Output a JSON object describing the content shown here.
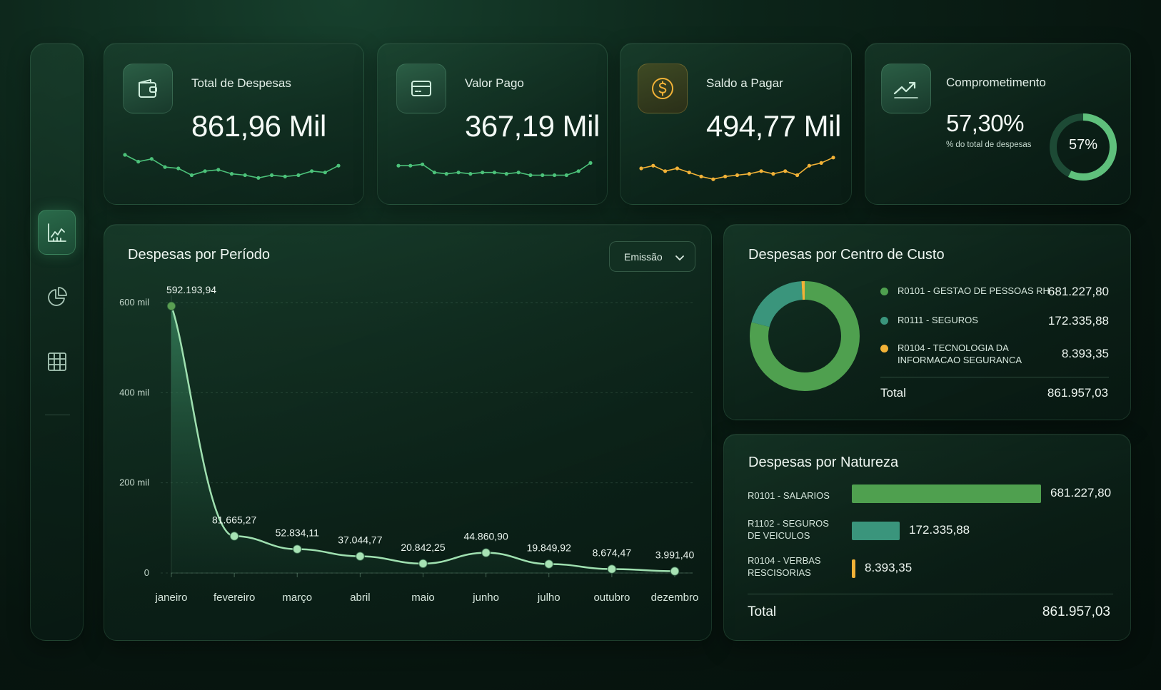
{
  "colors": {
    "green_accent": "#5fbf6a",
    "teal": "#3f9a7e",
    "gold": "#f2b237",
    "line_light": "#9fe0b0"
  },
  "sidebar": {
    "items": [
      {
        "name": "line-chart-icon",
        "active": true
      },
      {
        "name": "pie-chart-icon",
        "active": false
      },
      {
        "name": "table-grid-icon",
        "active": false
      }
    ]
  },
  "kpis": [
    {
      "label": "Total de Despesas",
      "value": "861,96 Mil",
      "icon": "wallet-icon",
      "spark_color": "#4cc27a",
      "spark": [
        10,
        7.5,
        8.5,
        5.5,
        5,
        2.5,
        4,
        4.5,
        3,
        2.5,
        1.5,
        2.5,
        2,
        2.5,
        4,
        3.5,
        6
      ]
    },
    {
      "label": "Valor Pago",
      "value": "367,19 Mil",
      "icon": "credit-card-icon",
      "spark_color": "#4cc27a",
      "spark": [
        6,
        6,
        6.5,
        3.5,
        3,
        3.5,
        3,
        3.5,
        3.5,
        3,
        3.5,
        2.5,
        2.5,
        2.5,
        2.5,
        4,
        7
      ]
    },
    {
      "label": "Saldo a Pagar",
      "value": "494,77 Mil",
      "icon": "dollar-coin-icon",
      "spark_color": "#f2b237",
      "spark": [
        5,
        6,
        4,
        5,
        3.5,
        2,
        1,
        2,
        2.5,
        3,
        4,
        3,
        4,
        2.5,
        6,
        7,
        9
      ]
    },
    {
      "label": "Comprometimento",
      "value": "57,30%",
      "sublabel": "% do total de despesas",
      "gauge_value": 57.3,
      "gauge_label": "57%",
      "icon": "trend-up-icon"
    }
  ],
  "period_panel": {
    "title": "Despesas por Período",
    "dropdown_value": "Emissão"
  },
  "chart_data": [
    {
      "type": "area",
      "title": "Despesas por Período",
      "categories": [
        "janeiro",
        "fevereiro",
        "março",
        "abril",
        "maio",
        "junho",
        "julho",
        "outubro",
        "dezembro"
      ],
      "values": [
        592193.94,
        81665.27,
        52834.11,
        37044.77,
        20842.25,
        44860.9,
        19849.92,
        8674.47,
        3991.4
      ],
      "data_labels": [
        "592.193,94",
        "81.665,27",
        "52.834,11",
        "37.044,77",
        "20.842,25",
        "44.860,90",
        "19.849,92",
        "8.674,47",
        "3.991,40"
      ],
      "yticks": [
        {
          "value": 0,
          "label": "0"
        },
        {
          "value": 200000,
          "label": "200 mil"
        },
        {
          "value": 400000,
          "label": "400 mil"
        },
        {
          "value": 600000,
          "label": "600 mil"
        }
      ],
      "ylim": [
        0,
        600000
      ],
      "grid": true
    },
    {
      "type": "pie",
      "title": "Despesas por Centro de Custo",
      "slices": [
        {
          "name": "R0101 - GESTAO DE PESSOAS RH",
          "value": 681227.8,
          "label": "681.227,80",
          "color": "#4fa04f"
        },
        {
          "name": "R0111 - SEGUROS",
          "value": 172335.88,
          "label": "172.335,88",
          "color": "#3a957c"
        },
        {
          "name": "R0104 - TECNOLOGIA DA INFORMACAO SEGURANCA",
          "value": 8393.35,
          "label": "8.393,35",
          "color": "#f2b237"
        }
      ],
      "total_label": "Total",
      "total_value": "861.957,03"
    },
    {
      "type": "bar",
      "title": "Despesas por Natureza",
      "categories": [
        "R0101 - SALARIOS",
        "R1102 - SEGUROS DE VEICULOS",
        "R0104 - VERBAS RESCISORIAS"
      ],
      "values": [
        681227.8,
        172335.88,
        8393.35
      ],
      "labels": [
        "681.227,80",
        "172.335,88",
        "8.393,35"
      ],
      "colors": [
        "#4fa04f",
        "#3a957c",
        "#f2b237"
      ],
      "total_label": "Total",
      "total_value": "861.957,03"
    }
  ],
  "cost_center": {
    "title": "Despesas por Centro de Custo",
    "legend": [
      {
        "label": "R0101 - GESTAO DE PESSOAS RH",
        "value": "681.227,80",
        "color": "#4fa04f"
      },
      {
        "label": "R0111 - SEGUROS",
        "value": "172.335,88",
        "color": "#3a957c"
      },
      {
        "label": "R0104 - TECNOLOGIA DA INFORMACAO SEGURANCA",
        "value": "8.393,35",
        "color": "#f2b237"
      }
    ],
    "total_label": "Total",
    "total_value": "861.957,03"
  },
  "natureza": {
    "title": "Despesas por Natureza",
    "rows": [
      {
        "label": "R0101 - SALARIOS",
        "value": "681.227,80",
        "color": "#4fa04f"
      },
      {
        "label": "R1102 - SEGUROS DE VEICULOS",
        "value": "172.335,88",
        "color": "#3a957c"
      },
      {
        "label": "R0104 - VERBAS RESCISORIAS",
        "value": "8.393,35",
        "color": "#f2b237"
      }
    ],
    "total_label": "Total",
    "total_value": "861.957,03"
  }
}
